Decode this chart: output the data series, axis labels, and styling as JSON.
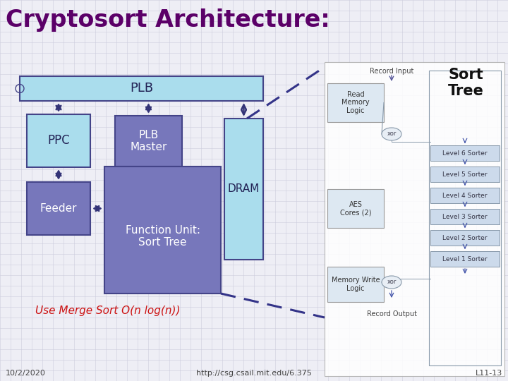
{
  "title": "Cryptosort Architecture:",
  "title_color": "#5B0068",
  "title_fontsize": 26,
  "bg_color": "#eeeef5",
  "grid_color": "#ccccdd",
  "footer_left": "10/2/2020",
  "footer_center": "http://csg.csail.mit.edu/6.375",
  "footer_right": "L11-13",
  "use_merge_text": "Use Merge Sort O(n log(n))",
  "plb_color": "#aadded",
  "plb_border": "#444488",
  "ppc_color": "#aadded",
  "plbmaster_color": "#7777bb",
  "feeder_color": "#7777bb",
  "fu_color": "#7777bb",
  "dram_color": "#aadded",
  "arrow_color": "#333377",
  "rml_color": "#dde8f2",
  "aes_color": "#dde8f2",
  "mwl_color": "#dde8f2",
  "sorter_color": "#ccdaeb",
  "record_input_text": "Record Input",
  "record_output_text": "Record Output",
  "sort_tree_label": "Sort\nTree",
  "read_memory_label": "Read\nMemory\nLogic",
  "aes_label": "AES\nCores (2)",
  "mem_write_label": "Memory Write\nLogic",
  "sorter_levels": [
    "Level 6 Sorter",
    "Level 5 Sorter",
    "Level 4 Sorter",
    "Level 3 Sorter",
    "Level 2 Sorter",
    "Level 1 Sorter"
  ]
}
